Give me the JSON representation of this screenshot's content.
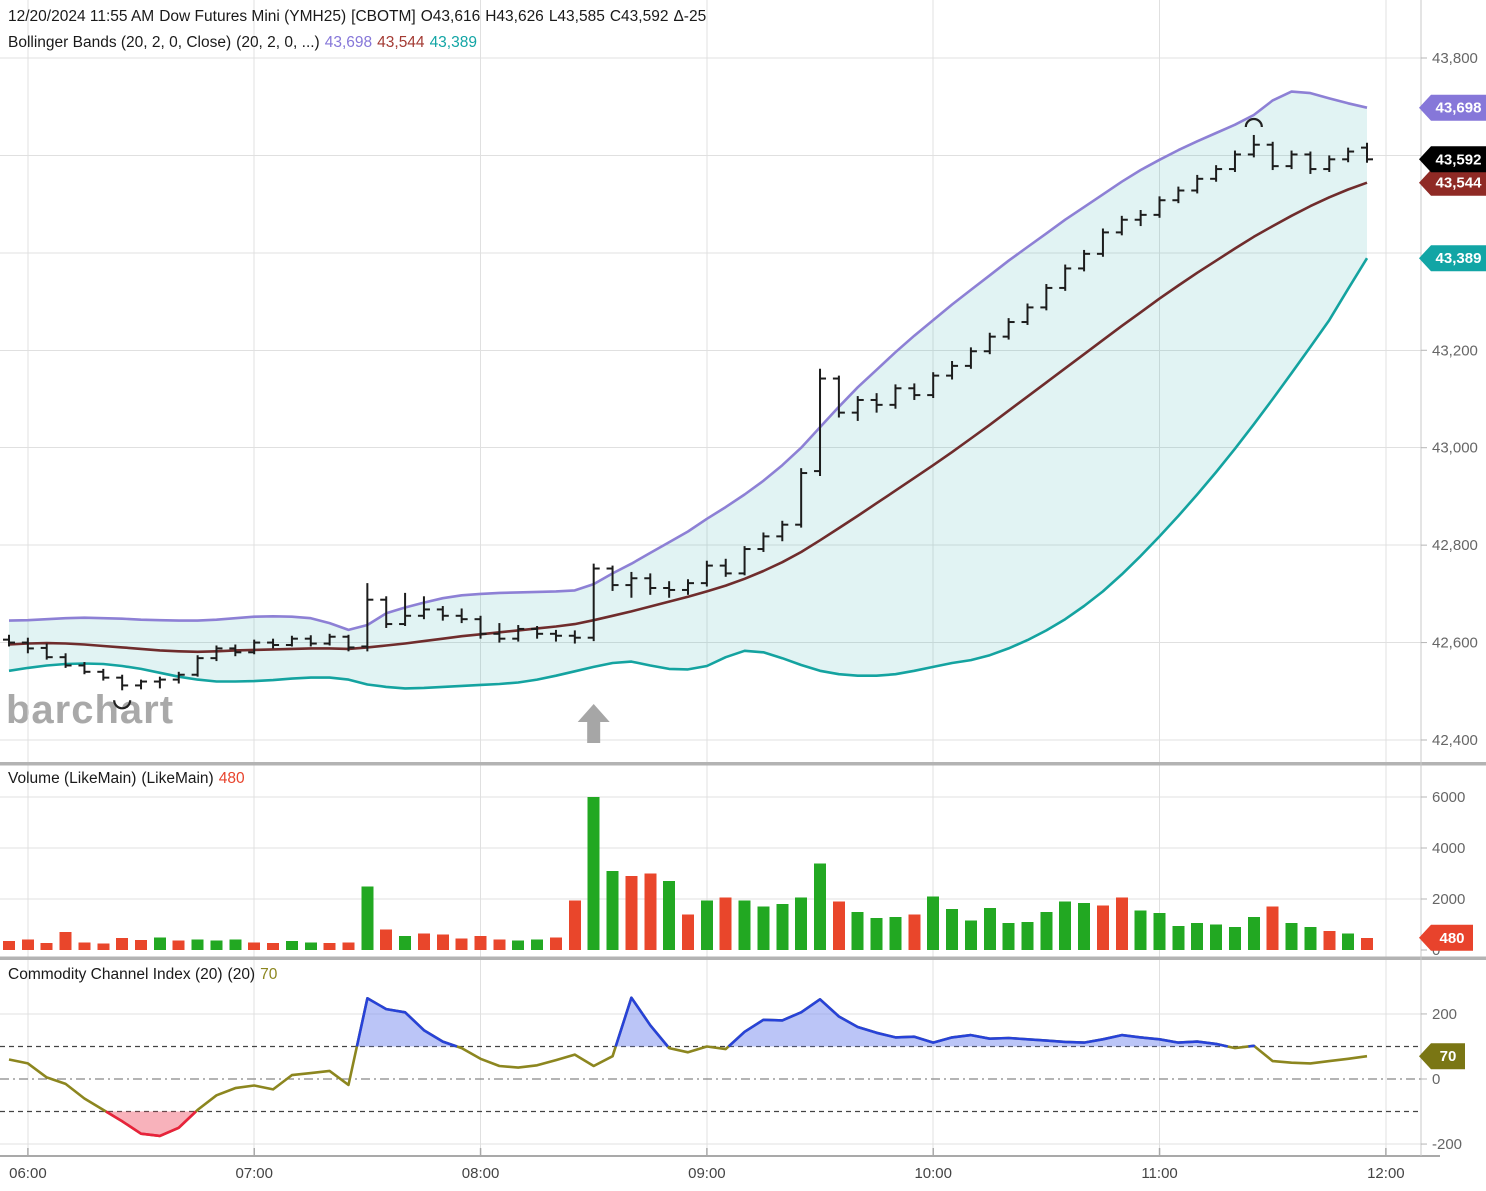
{
  "header": {
    "line1": {
      "datetime": "12/20/2024 11:55 AM",
      "symbol": "Dow Futures Mini (YMH25)",
      "exchange": "[CBOTM]",
      "open": "O43,616",
      "high": "H43,626",
      "low": "L43,585",
      "close": "C43,592",
      "change": "Δ-25"
    },
    "line2": {
      "label": "Bollinger Bands (20, 2, 0, Close)",
      "params": "(20, 2, 0, ...)",
      "upper": "43,698",
      "middle": "43,544",
      "lower": "43,389"
    }
  },
  "watermark": "barchart",
  "panels": {
    "volume": {
      "title": "Volume (LikeMain)",
      "title2": "(LikeMain)",
      "value": "480"
    },
    "cci": {
      "title": "Commodity Channel Index (20)",
      "title2": "(20)",
      "value": "70"
    }
  },
  "x_axis": {
    "hour_labels": [
      "06:00",
      "07:00",
      "08:00",
      "09:00",
      "10:00",
      "11:00",
      "12:00"
    ]
  },
  "colors": {
    "upper_band": "#8d80d5",
    "middle_band": "#6f2c2c",
    "lower_band": "#14a3a0",
    "band_fill": "rgba(23,163,163,0.13)",
    "ohlc_bar": "#1c1c1c",
    "volume_up": "#22a822",
    "volume_down": "#e9462b",
    "cci_line": "#8c861f",
    "cci_over_line": "#2742d8",
    "cci_over_fill": "rgba(120,140,240,0.50)",
    "cci_under_line": "#e8223c",
    "cci_under_fill": "rgba(240,85,105,0.45)",
    "badge_upper": "#8677d9",
    "badge_close": "#000000",
    "badge_middle": "#8f2a25",
    "badge_lower": "#12a5a5",
    "badge_volume": "#e8432c",
    "badge_cci": "#7a7614",
    "arrow": "#a6a6a6",
    "grid": "#e0e0e0",
    "separator": "#b3b3b3",
    "axis_text": "#666666"
  },
  "chart_data": [
    {
      "type": "ohlc",
      "title": "Dow Futures Mini (YMH25) 5-minute with Bollinger Bands (20,2,0,Close)",
      "times": [
        "05:55",
        "06:00",
        "06:05",
        "06:10",
        "06:15",
        "06:20",
        "06:25",
        "06:30",
        "06:35",
        "06:40",
        "06:45",
        "06:50",
        "06:55",
        "07:00",
        "07:05",
        "07:10",
        "07:15",
        "07:20",
        "07:25",
        "07:30",
        "07:35",
        "07:40",
        "07:45",
        "07:50",
        "07:55",
        "08:00",
        "08:05",
        "08:10",
        "08:15",
        "08:20",
        "08:25",
        "08:30",
        "08:35",
        "08:40",
        "08:45",
        "08:50",
        "08:55",
        "09:00",
        "09:05",
        "09:10",
        "09:15",
        "09:20",
        "09:25",
        "09:30",
        "09:35",
        "09:40",
        "09:45",
        "09:50",
        "09:55",
        "10:00",
        "10:05",
        "10:10",
        "10:15",
        "10:20",
        "10:25",
        "10:30",
        "10:35",
        "10:40",
        "10:45",
        "10:50",
        "10:55",
        "11:00",
        "11:05",
        "11:10",
        "11:15",
        "11:20",
        "11:25",
        "11:30",
        "11:35",
        "11:40",
        "11:45",
        "11:50",
        "11:55"
      ],
      "ohlc": [
        [
          42606,
          42616,
          42592,
          42600
        ],
        [
          42600,
          42610,
          42578,
          42588
        ],
        [
          42589,
          42598,
          42565,
          42570
        ],
        [
          42570,
          42578,
          42548,
          42553
        ],
        [
          42553,
          42560,
          42535,
          42540
        ],
        [
          42540,
          42546,
          42522,
          42528
        ],
        [
          42528,
          42534,
          42502,
          42512
        ],
        [
          42512,
          42524,
          42504,
          42520
        ],
        [
          42520,
          42530,
          42506,
          42524
        ],
        [
          42524,
          42540,
          42516,
          42534
        ],
        [
          42534,
          42574,
          42530,
          42568
        ],
        [
          42568,
          42594,
          42562,
          42588
        ],
        [
          42588,
          42596,
          42572,
          42580
        ],
        [
          42580,
          42606,
          42576,
          42600
        ],
        [
          42600,
          42608,
          42588,
          42595
        ],
        [
          42595,
          42614,
          42592,
          42608
        ],
        [
          42608,
          42615,
          42592,
          42598
        ],
        [
          42598,
          42618,
          42594,
          42612
        ],
        [
          42612,
          42616,
          42582,
          42590
        ],
        [
          42592,
          42722,
          42582,
          42688
        ],
        [
          42688,
          42695,
          42630,
          42638
        ],
        [
          42638,
          42702,
          42634,
          42655
        ],
        [
          42655,
          42695,
          42648,
          42668
        ],
        [
          42668,
          42675,
          42645,
          42655
        ],
        [
          42655,
          42670,
          42640,
          42648
        ],
        [
          42648,
          42655,
          42608,
          42618
        ],
        [
          42618,
          42640,
          42600,
          42608
        ],
        [
          42608,
          42636,
          42602,
          42628
        ],
        [
          42628,
          42634,
          42608,
          42618
        ],
        [
          42618,
          42626,
          42602,
          42614
        ],
        [
          42614,
          42625,
          42598,
          42610
        ],
        [
          42610,
          42762,
          42603,
          42752
        ],
        [
          42752,
          42758,
          42706,
          42718
        ],
        [
          42718,
          42745,
          42692,
          42732
        ],
        [
          42732,
          42742,
          42698,
          42712
        ],
        [
          42712,
          42726,
          42692,
          42708
        ],
        [
          42708,
          42730,
          42698,
          42722
        ],
        [
          42722,
          42768,
          42715,
          42758
        ],
        [
          42758,
          42772,
          42735,
          42742
        ],
        [
          42742,
          42798,
          42738,
          42792
        ],
        [
          42792,
          42826,
          42786,
          42818
        ],
        [
          42818,
          42850,
          42808,
          42842
        ],
        [
          42842,
          42958,
          42836,
          42948
        ],
        [
          42952,
          43162,
          42942,
          43142
        ],
        [
          43142,
          43148,
          43062,
          43072
        ],
        [
          43072,
          43106,
          43055,
          43098
        ],
        [
          43098,
          43112,
          43072,
          43088
        ],
        [
          43088,
          43130,
          43080,
          43122
        ],
        [
          43122,
          43132,
          43098,
          43108
        ],
        [
          43108,
          43155,
          43102,
          43148
        ],
        [
          43148,
          43178,
          43140,
          43168
        ],
        [
          43168,
          43206,
          43162,
          43198
        ],
        [
          43198,
          43236,
          43192,
          43228
        ],
        [
          43228,
          43266,
          43222,
          43258
        ],
        [
          43258,
          43296,
          43252,
          43288
        ],
        [
          43288,
          43336,
          43282,
          43328
        ],
        [
          43328,
          43376,
          43322,
          43368
        ],
        [
          43368,
          43406,
          43362,
          43398
        ],
        [
          43398,
          43450,
          43392,
          43442
        ],
        [
          43442,
          43476,
          43436,
          43468
        ],
        [
          43468,
          43488,
          43455,
          43478
        ],
        [
          43478,
          43516,
          43472,
          43508
        ],
        [
          43508,
          43536,
          43502,
          43528
        ],
        [
          43528,
          43560,
          43522,
          43552
        ],
        [
          43552,
          43580,
          43546,
          43572
        ],
        [
          43572,
          43610,
          43566,
          43602
        ],
        [
          43602,
          43642,
          43596,
          43622
        ],
        [
          43622,
          43628,
          43570,
          43578
        ],
        [
          43578,
          43610,
          43572,
          43602
        ],
        [
          43602,
          43608,
          43562,
          43572
        ],
        [
          43572,
          43600,
          43566,
          43592
        ],
        [
          43592,
          43616,
          43586,
          43608
        ],
        [
          43616,
          43626,
          43585,
          43592
        ]
      ],
      "bollinger": {
        "upper": [
          42645,
          42646,
          42648,
          42650,
          42651,
          42650,
          42649,
          42647,
          42646,
          42645,
          42645,
          42647,
          42650,
          42653,
          42654,
          42653,
          42650,
          42640,
          42626,
          42636,
          42660,
          42672,
          42682,
          42691,
          42697,
          42700,
          42702,
          42703,
          42704,
          42705,
          42707,
          42720,
          42742,
          42762,
          42784,
          42806,
          42828,
          42854,
          42878,
          42904,
          42932,
          42964,
          43000,
          43042,
          43084,
          43124,
          43160,
          43196,
          43230,
          43262,
          43294,
          43324,
          43354,
          43384,
          43412,
          43440,
          43468,
          43494,
          43520,
          43546,
          43570,
          43591,
          43611,
          43629,
          43646,
          43663,
          43683,
          43713,
          43731,
          43728,
          43717,
          43707,
          43698
        ],
        "middle": [
          42596,
          42598,
          42599,
          42598,
          42596,
          42593,
          42590,
          42587,
          42584,
          42582,
          42581,
          42582,
          42584,
          42585,
          42586,
          42587,
          42588,
          42588,
          42587,
          42590,
          42594,
          42598,
          42603,
          42608,
          42613,
          42617,
          42621,
          42625,
          42629,
          42633,
          42638,
          42646,
          42655,
          42664,
          42674,
          42684,
          42694,
          42705,
          42717,
          42731,
          42747,
          42765,
          42786,
          42810,
          42835,
          42860,
          42886,
          42912,
          42938,
          42964,
          42991,
          43019,
          43047,
          43076,
          43105,
          43134,
          43163,
          43192,
          43221,
          43250,
          43278,
          43306,
          43333,
          43359,
          43384,
          43409,
          43433,
          43455,
          43476,
          43496,
          43514,
          43530,
          43544
        ],
        "lower": [
          42542,
          42548,
          42553,
          42556,
          42557,
          42556,
          42552,
          42546,
          42538,
          42530,
          42524,
          42520,
          42520,
          42521,
          42523,
          42526,
          42528,
          42528,
          42524,
          42514,
          42509,
          42506,
          42507,
          42509,
          42511,
          42513,
          42515,
          42518,
          42524,
          42532,
          42541,
          42550,
          42558,
          42561,
          42553,
          42546,
          42545,
          42552,
          42570,
          42583,
          42580,
          42568,
          42554,
          42542,
          42535,
          42532,
          42532,
          42535,
          42542,
          42550,
          42558,
          42564,
          42574,
          42588,
          42605,
          42625,
          42648,
          42675,
          42705,
          42740,
          42778,
          42818,
          42860,
          42904,
          42950,
          42998,
          43048,
          43100,
          43153,
          43207,
          43262,
          43326,
          43389
        ]
      },
      "y_axis": {
        "visible_labels": [
          "43,800",
          "43,200",
          "43,000",
          "42,800",
          "42,600",
          "42,400"
        ],
        "visible_values": [
          43800,
          43200,
          43000,
          42800,
          42600,
          42400
        ],
        "gridline_values": [
          43800,
          43600,
          43400,
          43200,
          43000,
          42800,
          42600,
          42400
        ]
      },
      "badges": [
        {
          "name": "upper-band-badge",
          "text": "43,698",
          "value": 43698,
          "color_key": "badge_upper"
        },
        {
          "name": "middle-band-badge",
          "text": "43,544",
          "value": 43544,
          "color_key": "badge_middle"
        },
        {
          "name": "last-price-badge",
          "text": "43,592",
          "value": 43592,
          "color_key": "badge_close"
        },
        {
          "name": "lower-band-badge",
          "text": "43,389",
          "value": 43389,
          "color_key": "badge_lower"
        }
      ],
      "markers": [
        {
          "shape": "arc-under",
          "bar": 6,
          "meaning": "swing-low"
        },
        {
          "shape": "arc-over",
          "bar": 66,
          "meaning": "swing-high"
        }
      ],
      "arrow_bar": 31
    },
    {
      "type": "bar",
      "title": "Volume (LikeMain)",
      "values": [
        350,
        420,
        280,
        700,
        300,
        250,
        480,
        400,
        500,
        380,
        420,
        380,
        420,
        300,
        280,
        350,
        300,
        280,
        300,
        2500,
        800,
        550,
        650,
        600,
        450,
        550,
        420,
        380,
        420,
        500,
        1950,
        6000,
        3100,
        2900,
        3000,
        2700,
        1400,
        1950,
        2050,
        1950,
        1700,
        1800,
        2050,
        3400,
        1900,
        1500,
        1250,
        1300,
        1400,
        2100,
        1600,
        1150,
        1650,
        1050,
        1100,
        1500,
        1900,
        1850,
        1750,
        2050,
        1550,
        1450,
        950,
        1050,
        1000,
        900,
        1300,
        1700,
        1050,
        900,
        750,
        650,
        480
      ],
      "bar_colors": [
        "r",
        "r",
        "r",
        "r",
        "r",
        "r",
        "r",
        "r",
        "g",
        "r",
        "g",
        "g",
        "g",
        "r",
        "r",
        "g",
        "g",
        "r",
        "r",
        "g",
        "r",
        "g",
        "r",
        "r",
        "r",
        "r",
        "r",
        "g",
        "g",
        "r",
        "r",
        "g",
        "g",
        "r",
        "r",
        "g",
        "r",
        "g",
        "r",
        "g",
        "g",
        "g",
        "g",
        "g",
        "r",
        "g",
        "g",
        "g",
        "r",
        "g",
        "g",
        "g",
        "g",
        "g",
        "g",
        "g",
        "g",
        "g",
        "r",
        "r",
        "g",
        "g",
        "g",
        "g",
        "g",
        "g",
        "g",
        "r",
        "g",
        "g",
        "r",
        "g",
        "r"
      ],
      "y_axis": {
        "labels": [
          "6000",
          "4000",
          "2000",
          "0"
        ],
        "values": [
          6000,
          4000,
          2000,
          0
        ]
      },
      "badge": {
        "name": "volume-badge",
        "text": "480",
        "value": 480,
        "color_key": "badge_volume"
      }
    },
    {
      "type": "line",
      "title": "Commodity Channel Index (20)",
      "values": [
        60,
        48,
        5,
        -15,
        -60,
        -95,
        -130,
        -168,
        -175,
        -150,
        -95,
        -50,
        -28,
        -20,
        -32,
        12,
        18,
        25,
        -18,
        248,
        215,
        205,
        150,
        115,
        95,
        62,
        40,
        35,
        42,
        58,
        75,
        40,
        70,
        250,
        165,
        95,
        82,
        100,
        92,
        145,
        182,
        180,
        205,
        245,
        192,
        160,
        142,
        128,
        130,
        112,
        128,
        135,
        124,
        126,
        122,
        118,
        114,
        112,
        122,
        135,
        128,
        122,
        112,
        115,
        108,
        95,
        102,
        55,
        50,
        48,
        55,
        62,
        70
      ],
      "y_axis": {
        "labels": [
          "200",
          "0",
          "-200"
        ],
        "values": [
          200,
          0,
          -200
        ]
      },
      "thresholds": {
        "overbought": 100,
        "zero": 0,
        "oversold": -100
      },
      "badge": {
        "name": "cci-badge",
        "text": "70",
        "value": 70,
        "color_key": "badge_cci"
      }
    }
  ]
}
